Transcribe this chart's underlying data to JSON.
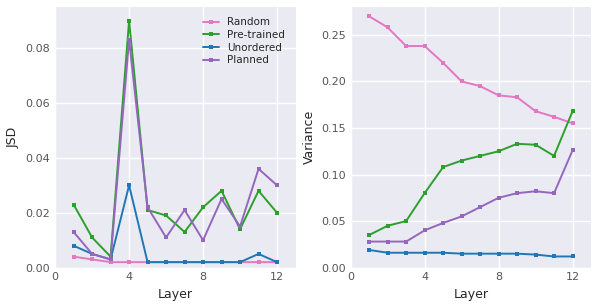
{
  "layers": [
    1,
    2,
    3,
    4,
    5,
    6,
    7,
    8,
    9,
    10,
    11,
    12
  ],
  "jsd": {
    "random": [
      0.004,
      0.003,
      0.002,
      0.002,
      0.002,
      0.002,
      0.002,
      0.002,
      0.002,
      0.002,
      0.002,
      0.002
    ],
    "pretrained": [
      0.023,
      0.011,
      0.004,
      0.09,
      0.021,
      0.019,
      0.013,
      0.022,
      0.028,
      0.014,
      0.028,
      0.02
    ],
    "unordered": [
      0.008,
      0.005,
      0.003,
      0.03,
      0.002,
      0.002,
      0.002,
      0.002,
      0.002,
      0.002,
      0.005,
      0.002
    ],
    "planned": [
      0.013,
      0.005,
      0.003,
      0.083,
      0.022,
      0.011,
      0.021,
      0.01,
      0.025,
      0.015,
      0.036,
      0.03
    ]
  },
  "variance": {
    "random": [
      0.27,
      0.258,
      0.238,
      0.238,
      0.22,
      0.2,
      0.195,
      0.185,
      0.183,
      0.168,
      0.162,
      0.155
    ],
    "pretrained": [
      0.035,
      0.045,
      0.05,
      0.08,
      0.108,
      0.115,
      0.12,
      0.125,
      0.133,
      0.132,
      0.12,
      0.168
    ],
    "unordered": [
      0.019,
      0.016,
      0.016,
      0.016,
      0.016,
      0.015,
      0.015,
      0.015,
      0.015,
      0.014,
      0.012,
      0.012
    ],
    "planned": [
      0.028,
      0.028,
      0.028,
      0.04,
      0.048,
      0.055,
      0.065,
      0.075,
      0.08,
      0.082,
      0.08,
      0.126
    ]
  },
  "colors": {
    "random": "#e377c2",
    "pretrained": "#2ca02c",
    "unordered": "#1f77b4",
    "planned": "#9467bd"
  },
  "labels": {
    "random": "Random",
    "pretrained": "Pre-trained",
    "unordered": "Unordered",
    "planned": "Planned"
  },
  "jsd_ylim": [
    0,
    0.095
  ],
  "variance_ylim": [
    0,
    0.28
  ],
  "xticks": [
    0,
    4,
    8,
    12
  ],
  "marker": "s",
  "markersize": 3.5,
  "linewidth": 1.4,
  "axes_bg": "#eaeaf2",
  "grid_color": "#ffffff",
  "fig_bg": "#ffffff"
}
